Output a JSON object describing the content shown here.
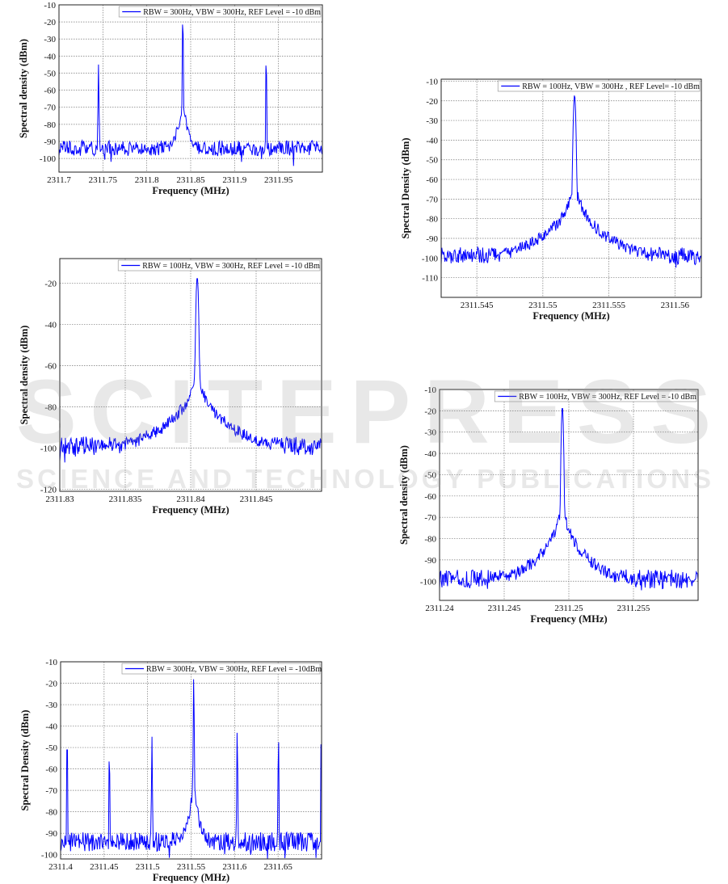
{
  "watermark": {
    "brand": "SCITEPRESS",
    "tagline": "SCIENCE AND TECHNOLOGY PUBLICATIONS"
  },
  "chart_data": [
    {
      "type": "line",
      "xlabel": "Frequency (MHz)",
      "ylabel": "Spectral density (dBm)",
      "legend": "RBW = 300Hz, VBW = 300Hz, REF Level = -10 dBm",
      "legend_placement": "top-right",
      "grid": true,
      "color": "#0000ff",
      "xlim": [
        2311.7,
        2312.0
      ],
      "ylim": [
        -108,
        -10
      ],
      "xticks": [
        "2311.7",
        "2311.75",
        "2311.8",
        "2311.85",
        "2311.9",
        "2311.95"
      ],
      "yticks": [
        "-10",
        "-20",
        "-30",
        "-40",
        "-50",
        "-60",
        "-70",
        "-80",
        "-90",
        "-100"
      ],
      "noise_floor_dbm": -94,
      "peaks": [
        {
          "x": 2311.745,
          "y": -45
        },
        {
          "x": 2311.841,
          "y": -17
        },
        {
          "x": 2311.936,
          "y": -41
        }
      ]
    },
    {
      "type": "line",
      "xlabel": "Frequency (MHz)",
      "ylabel": "Spectral density (dBm)",
      "legend": "RBW = 100Hz, VBW = 300Hz, REF Level = -10 dBm",
      "legend_placement": "top-right",
      "grid": true,
      "color": "#0000ff",
      "xlim": [
        2311.83,
        2311.85
      ],
      "ylim": [
        -121,
        -8
      ],
      "xticks": [
        "2311.83",
        "2311.835",
        "2311.84",
        "2311.845"
      ],
      "yticks": [
        "-20",
        "-40",
        "-60",
        "-80",
        "-100",
        "-120"
      ],
      "noise_floor_dbm": -99,
      "peaks": [
        {
          "x": 2311.8405,
          "y": -17
        }
      ]
    },
    {
      "type": "line",
      "xlabel": "Frequency (MHz)",
      "ylabel": "Spectral Density (dBm)",
      "legend": "RBW = 100Hz, VBW = 300Hz , REF Level= -10 dBm",
      "legend_placement": "top-right",
      "grid": true,
      "color": "#0000ff",
      "xlim": [
        2311.5423,
        2311.562
      ],
      "ylim": [
        -120,
        -9
      ],
      "xticks": [
        "2311.545",
        "2311.55",
        "2311.555",
        "2311.56"
      ],
      "yticks": [
        "-10",
        "-20",
        "-30",
        "-40",
        "-50",
        "-60",
        "-70",
        "-80",
        "-90",
        "-100",
        "-110"
      ],
      "noise_floor_dbm": -99,
      "peaks": [
        {
          "x": 2311.5524,
          "y": -17
        }
      ]
    },
    {
      "type": "line",
      "xlabel": "Frequency (MHz)",
      "ylabel": "Spectral density (dBm)",
      "legend": "RBW = 100Hz, VBW = 300Hz, REF Level = -10 dBm",
      "legend_placement": "top-right",
      "grid": true,
      "color": "#0000ff",
      "xlim": [
        2311.24,
        2311.26
      ],
      "ylim": [
        -109,
        -10
      ],
      "xticks": [
        "2311.24",
        "2311.245",
        "2311.25",
        "2311.255"
      ],
      "yticks": [
        "-10",
        "-20",
        "-30",
        "-40",
        "-50",
        "-60",
        "-70",
        "-80",
        "-90",
        "-100"
      ],
      "noise_floor_dbm": -99,
      "peaks": [
        {
          "x": 2311.2495,
          "y": -18
        }
      ]
    },
    {
      "type": "line",
      "xlabel": "Frequency (MHz)",
      "ylabel": "Spectral Density (dBm)",
      "legend": "RBW = 300Hz, VBW = 300Hz, REF Level = -10dBm",
      "legend_placement": "top-right",
      "grid": true,
      "color": "#0000ff",
      "xlim": [
        2311.4,
        2311.7
      ],
      "ylim": [
        -102,
        -10
      ],
      "xticks": [
        "2311.4",
        "2311.45",
        "2311.5",
        "2311.55",
        "2311.6",
        "2311.65"
      ],
      "yticks": [
        "-10",
        "-20",
        "-30",
        "-40",
        "-50",
        "-60",
        "-70",
        "-80",
        "-90",
        "-100"
      ],
      "noise_floor_dbm": -94,
      "peaks": [
        {
          "x": 2311.4075,
          "y": -44
        },
        {
          "x": 2311.456,
          "y": -52
        },
        {
          "x": 2311.505,
          "y": -45
        },
        {
          "x": 2311.553,
          "y": -17
        },
        {
          "x": 2311.603,
          "y": -42
        },
        {
          "x": 2311.6505,
          "y": -45
        },
        {
          "x": 2311.6995,
          "y": -46
        }
      ]
    }
  ]
}
